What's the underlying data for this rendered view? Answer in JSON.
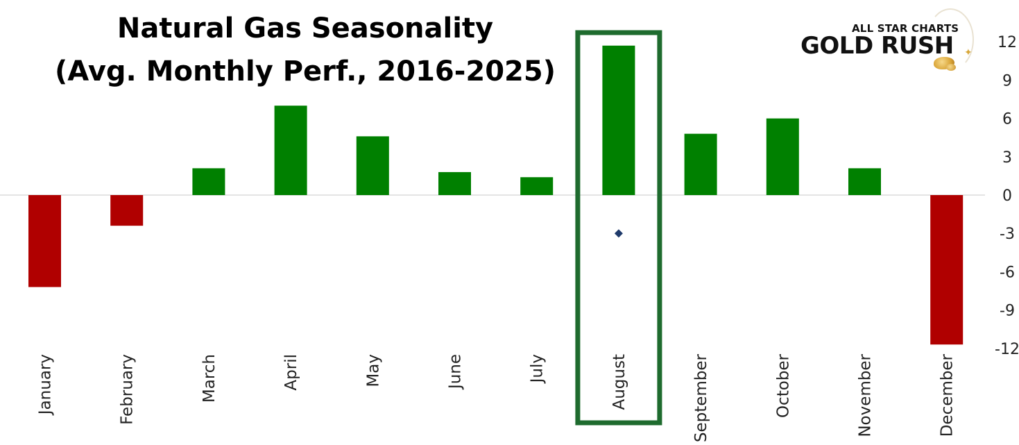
{
  "title": {
    "line1": "Natural Gas Seasonality",
    "line2": "(Avg. Monthly Perf., 2016-2025)"
  },
  "logo": {
    "top_text": "ALL STAR CHARTS",
    "main_text": "GOLD RUSH"
  },
  "colors": {
    "positive": "#008000",
    "negative": "#b00000",
    "highlight_box": "#1e6b2e",
    "marker": "#1f3a6b",
    "zero_line": "#c8c8c8"
  },
  "chart_data": {
    "type": "bar",
    "categories": [
      "January",
      "February",
      "March",
      "April",
      "May",
      "June",
      "July",
      "August",
      "September",
      "October",
      "November",
      "December"
    ],
    "values": [
      -7.2,
      -2.4,
      2.1,
      7.0,
      4.6,
      1.8,
      1.4,
      11.7,
      4.8,
      6.0,
      2.1,
      -11.7
    ],
    "marker": {
      "category": "August",
      "value": -3.0,
      "shape": "diamond"
    },
    "highlight": "August",
    "y_ticks": [
      12,
      9,
      6,
      3,
      0,
      -3,
      -6,
      -9,
      -12
    ],
    "ylim": [
      -12,
      12
    ],
    "y_axis_side": "right",
    "grid": false,
    "legend": "none",
    "title": "Natural Gas Seasonality (Avg. Monthly Perf., 2016-2025)",
    "xlabel": "",
    "ylabel": ""
  }
}
